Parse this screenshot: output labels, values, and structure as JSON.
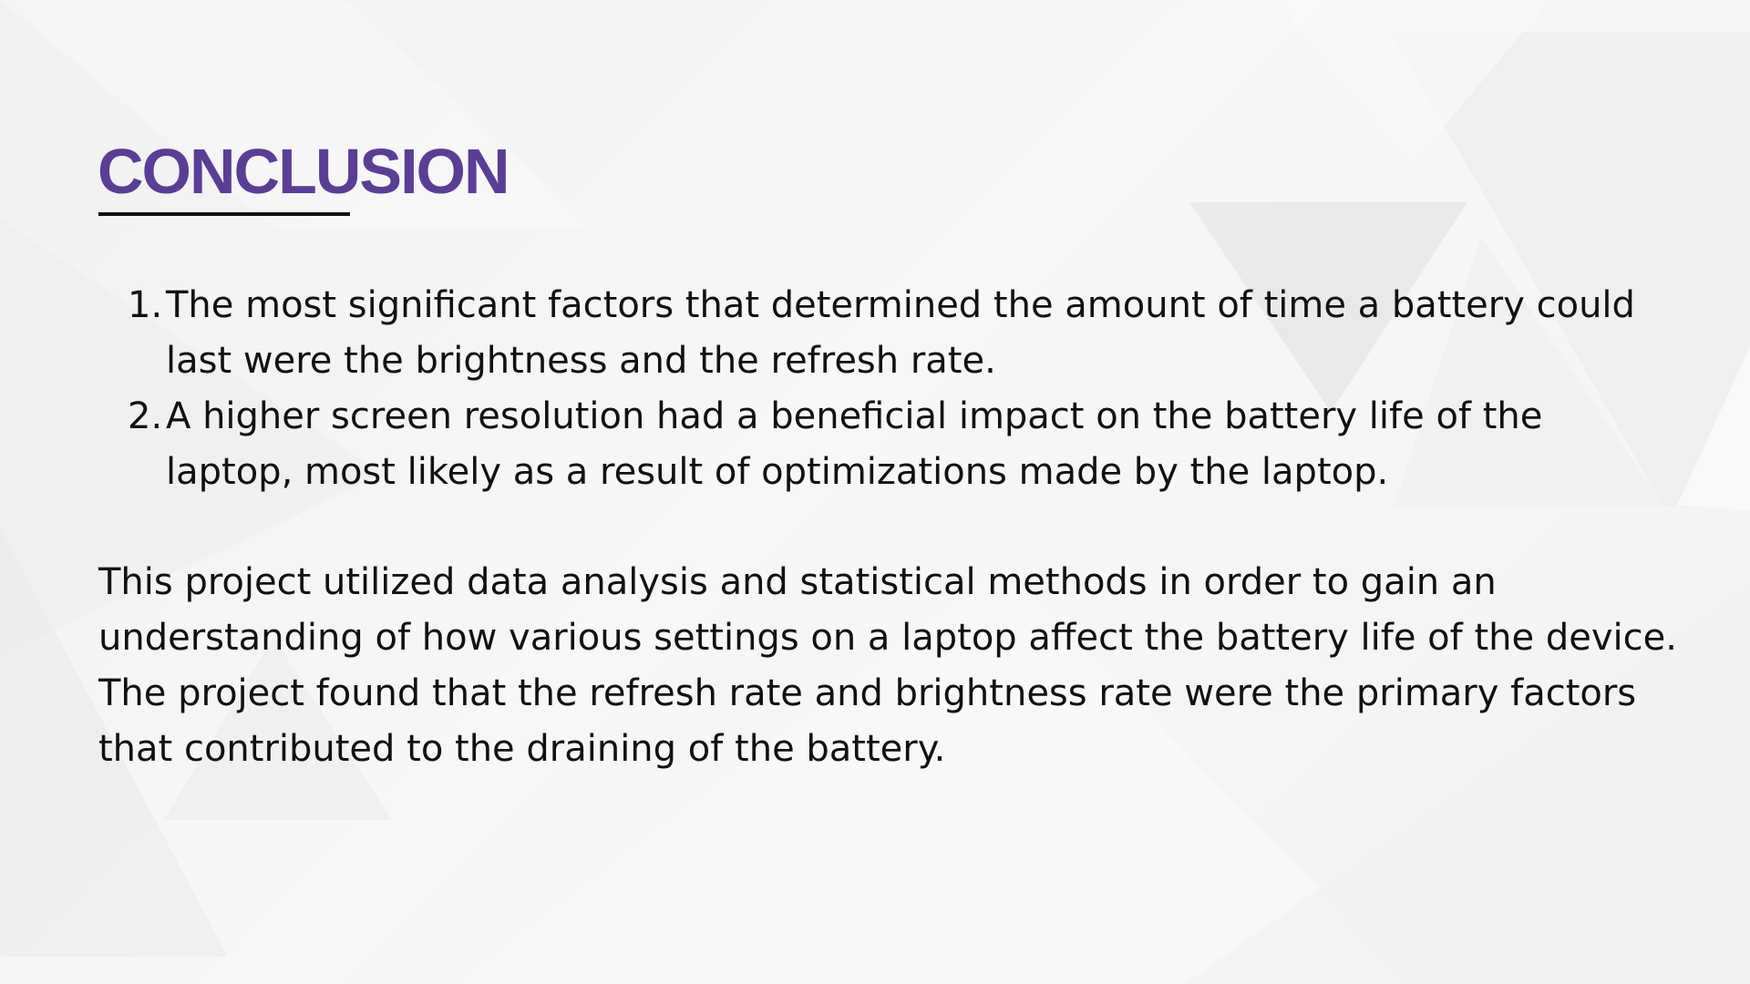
{
  "slide": {
    "title": "CONCLUSION",
    "findings": [
      {
        "number": "1.",
        "text": "The most significant factors that determined the amount of time a battery could last were the brightness and the refresh rate."
      },
      {
        "number": "2.",
        "text": "A higher screen resolution had a beneficial impact on the battery life of the laptop, most likely as a result of optimizations made by the laptop."
      }
    ],
    "summary": "This project utilized data analysis and statistical methods in order to gain an understanding of how various settings on a laptop affect the battery life of the device. The project found that the refresh rate and brightness rate were the primary factors that contributed to the draining of the battery."
  },
  "colors": {
    "title": "#5a3d96",
    "text": "#111111",
    "background": "#f4f4f4"
  }
}
